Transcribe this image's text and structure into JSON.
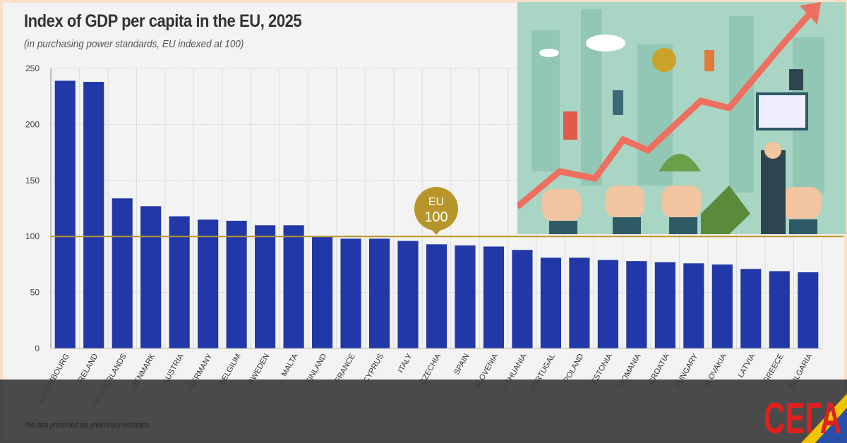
{
  "chart_data": {
    "type": "bar",
    "title": "Index of GDP per capita in the EU, 2025",
    "subtitle": "(in purchasing power standards, EU indexed at 100)",
    "categories": [
      "LUXEMBOURG",
      "IRELAND",
      "NETHERLANDS",
      "DENMARK",
      "AUSTRIA",
      "GERMANY",
      "BELGIUM",
      "SWEDEN",
      "MALTA",
      "FINLAND",
      "FRANCE",
      "CYPRUS",
      "ITALY",
      "CZECHIA",
      "SPAIN",
      "SLOVENIA",
      "LITHUANIA",
      "PORTUGAL",
      "POLAND",
      "ESTONIA",
      "ROMANIA",
      "CROATIA",
      "HUNGARY",
      "SLOVAKIA",
      "LATVIA",
      "GREECE",
      "BULGARIA"
    ],
    "values": [
      239,
      238,
      134,
      127,
      118,
      115,
      114,
      110,
      110,
      100,
      98,
      98,
      96,
      93,
      92,
      91,
      88,
      81,
      81,
      79,
      78,
      77,
      76,
      75,
      71,
      69,
      68
    ],
    "ylim": [
      0,
      250
    ],
    "yticks": [
      0,
      50,
      100,
      150,
      200,
      250
    ],
    "grid": true,
    "reference_line": {
      "value": 100,
      "label_top": "EU",
      "label_bottom": "100",
      "color": "#b8952a"
    },
    "bar_color": "#2138a8",
    "footnote": "The data presented are preliminary estimates."
  },
  "logo": {
    "text": "СЕГА",
    "color": "#e0201c"
  }
}
